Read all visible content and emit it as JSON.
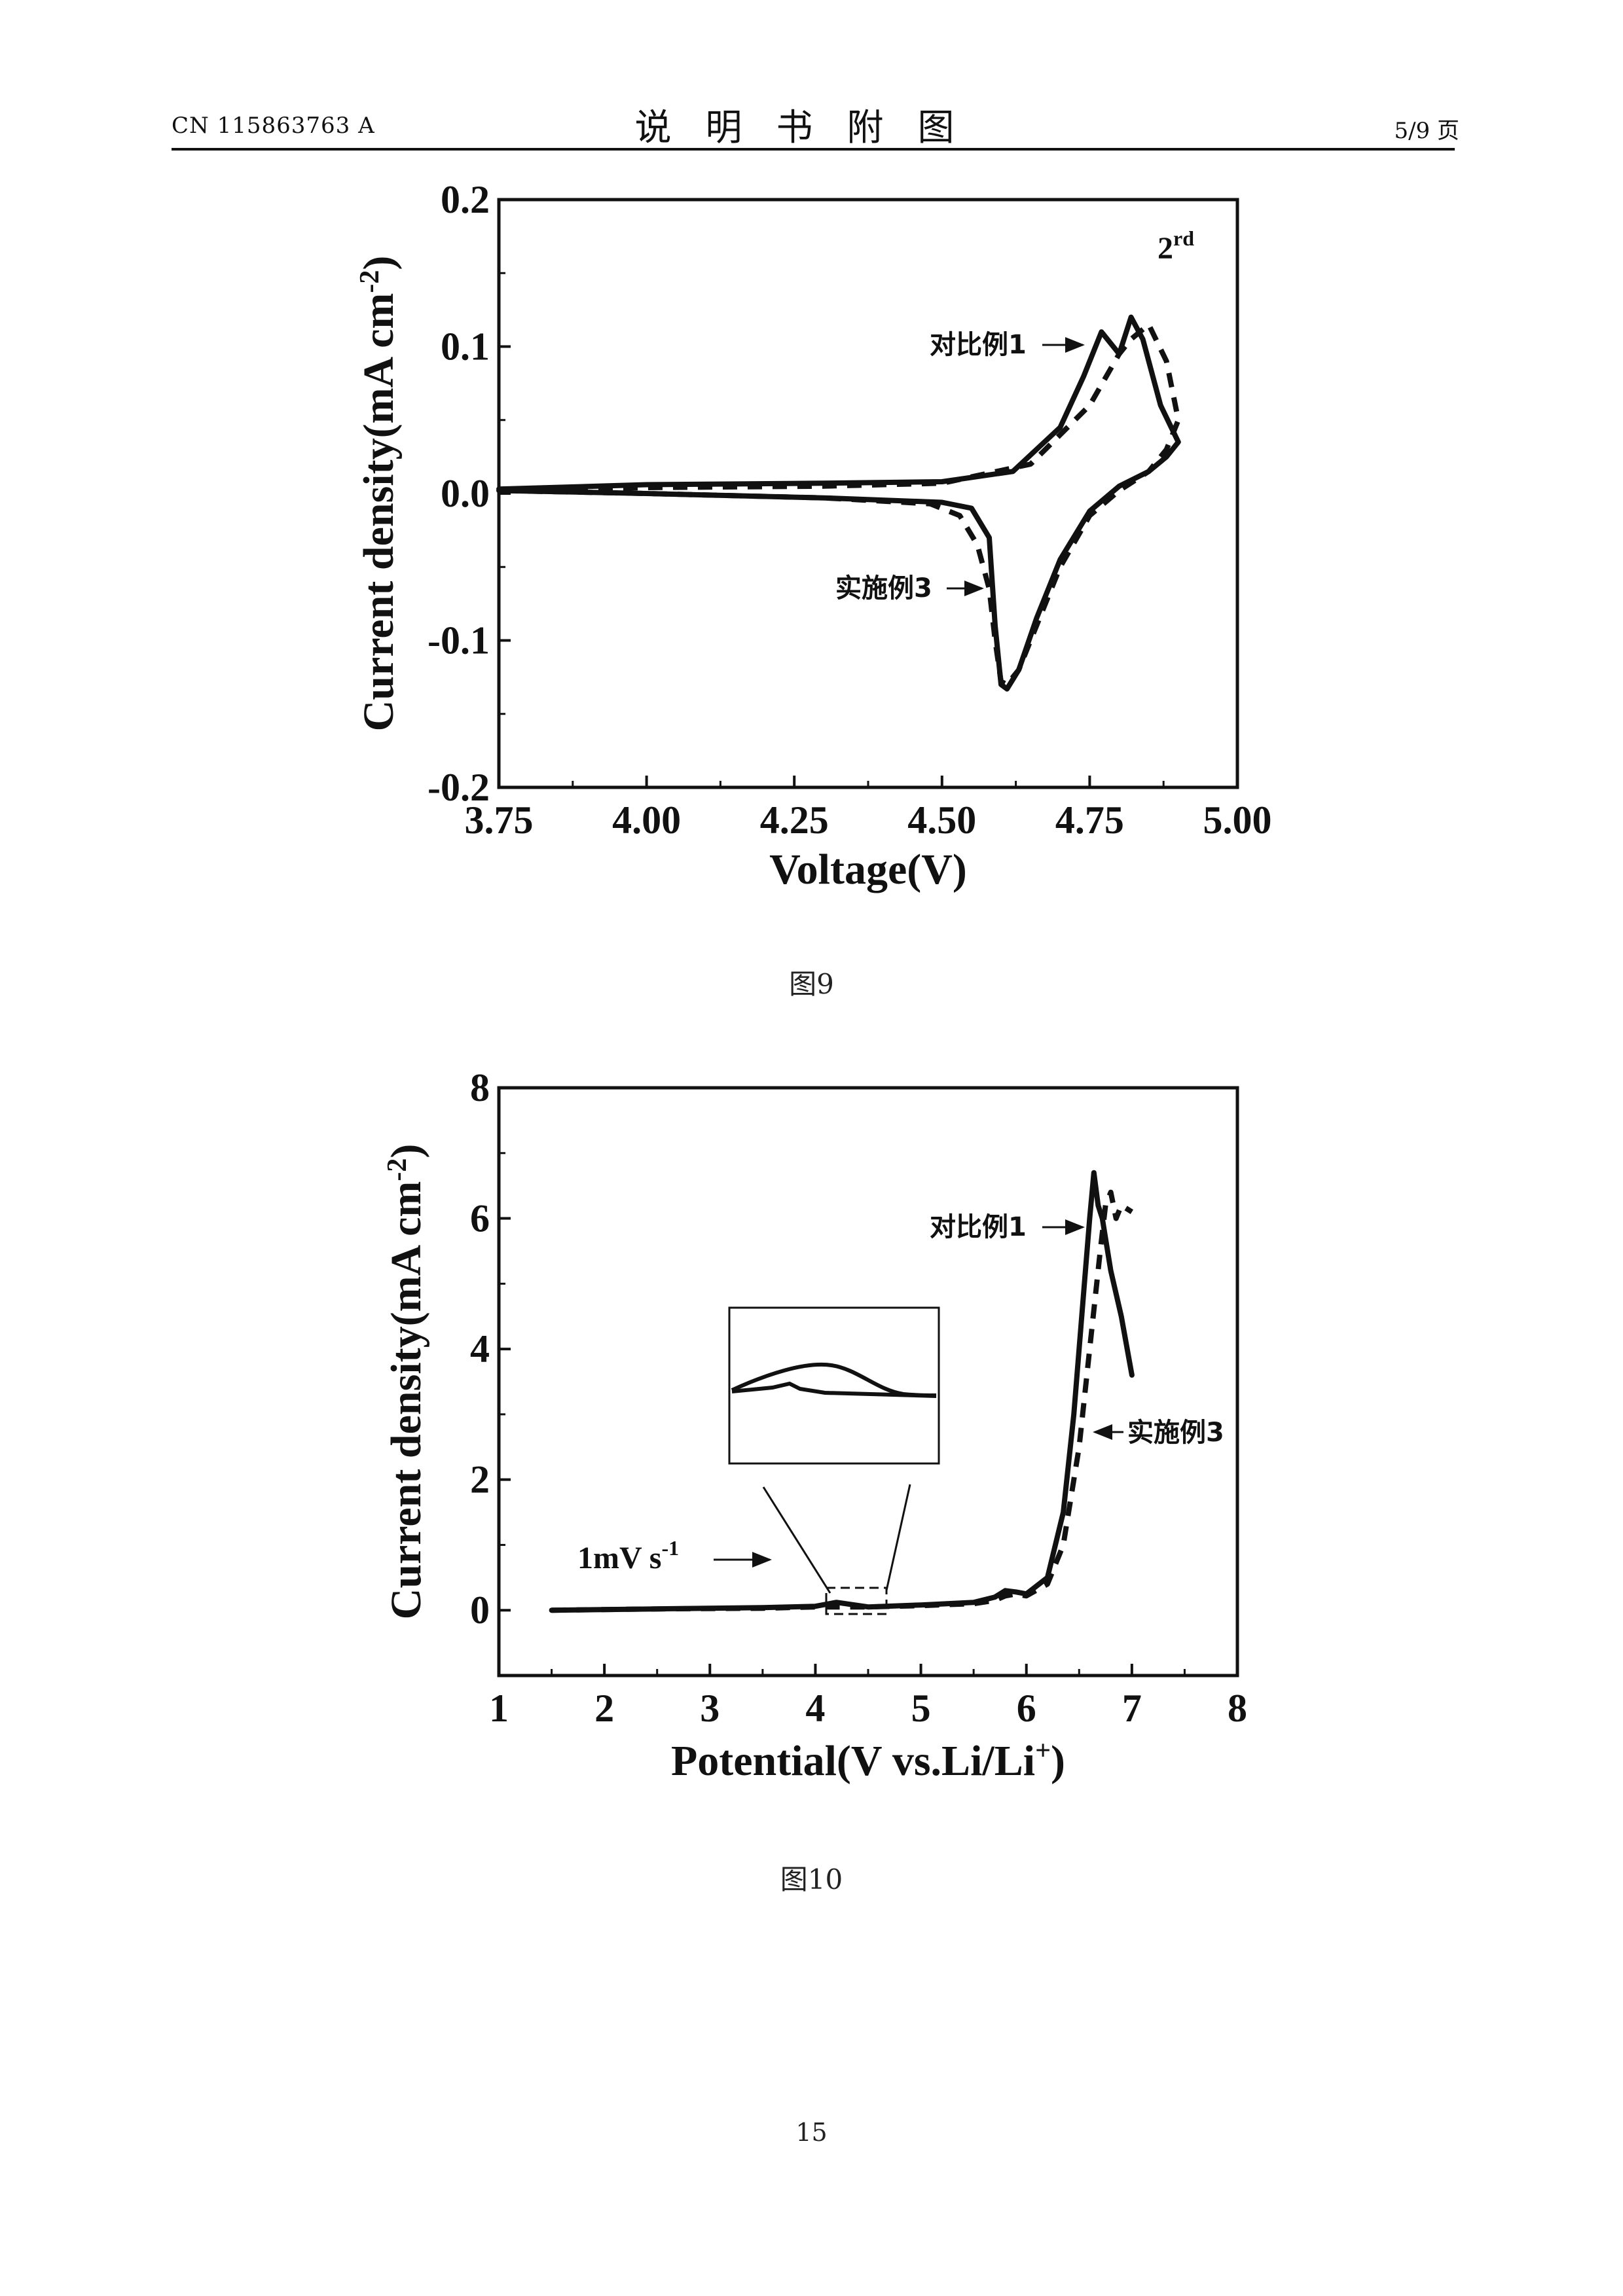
{
  "header": {
    "doc_number": "CN 115863763 A",
    "title": "说明书附图",
    "page_of": "5/9 页"
  },
  "footer": {
    "page_number": "15"
  },
  "chart_data": [
    {
      "type": "line",
      "figure_caption": "图9",
      "xlabel": "Voltage(V)",
      "ylabel": "Current density(mA cm",
      "ylabel_sup": "-2",
      "ylabel_close": ")",
      "xlim": [
        3.75,
        5.0
      ],
      "ylim": [
        -0.2,
        0.2
      ],
      "xticks": [
        "3.75",
        "4.00",
        "4.25",
        "4.50",
        "4.75",
        "5.00"
      ],
      "xtick_values": [
        3.75,
        4.0,
        4.25,
        4.5,
        4.75,
        5.0
      ],
      "yticks": [
        "0.2",
        "0.1",
        "0.0",
        "-0.1",
        "-0.2"
      ],
      "ytick_values": [
        0.2,
        0.1,
        0.0,
        -0.1,
        -0.2
      ],
      "annotation_cycle": "2",
      "annotation_cycle_sup": "rd",
      "series": [
        {
          "name": "对比例1",
          "style": "solid",
          "x": [
            3.75,
            4.0,
            4.3,
            4.5,
            4.62,
            4.7,
            4.74,
            4.77,
            4.8,
            4.82,
            4.84,
            4.87,
            4.9,
            4.88,
            4.85,
            4.8,
            4.75,
            4.7,
            4.66,
            4.63,
            4.61,
            4.6,
            4.59,
            4.58,
            4.55,
            4.5,
            4.3,
            4.0,
            3.75
          ],
          "y": [
            0.003,
            0.006,
            0.007,
            0.008,
            0.015,
            0.045,
            0.08,
            0.11,
            0.095,
            0.12,
            0.105,
            0.06,
            0.035,
            0.025,
            0.015,
            0.005,
            -0.012,
            -0.045,
            -0.085,
            -0.12,
            -0.133,
            -0.13,
            -0.09,
            -0.03,
            -0.01,
            -0.006,
            -0.003,
            0.0,
            0.002
          ]
        },
        {
          "name": "实施例3",
          "style": "dashed",
          "x": [
            3.75,
            4.0,
            4.3,
            4.5,
            4.65,
            4.75,
            4.8,
            4.82,
            4.85,
            4.88,
            4.9,
            4.88,
            4.85,
            4.8,
            4.75,
            4.7,
            4.66,
            4.63,
            4.61,
            4.6,
            4.59,
            4.58,
            4.56,
            4.53,
            4.48,
            4.3,
            4.0,
            3.75
          ],
          "y": [
            0.002,
            0.004,
            0.005,
            0.007,
            0.02,
            0.06,
            0.095,
            0.105,
            0.115,
            0.09,
            0.05,
            0.03,
            0.015,
            0.002,
            -0.015,
            -0.05,
            -0.09,
            -0.12,
            -0.13,
            -0.128,
            -0.1,
            -0.065,
            -0.035,
            -0.015,
            -0.007,
            -0.003,
            0.0,
            0.002
          ]
        }
      ]
    },
    {
      "type": "line",
      "figure_caption": "图10",
      "xlabel": "Potential(V vs.Li/Li",
      "xlabel_sup": "+",
      "xlabel_close": ")",
      "ylabel": "Current density(mA cm",
      "ylabel_sup": "-2",
      "ylabel_close": ")",
      "xlim": [
        1,
        8
      ],
      "ylim": [
        -1,
        8
      ],
      "xticks": [
        "1",
        "2",
        "3",
        "4",
        "5",
        "6",
        "7",
        "8"
      ],
      "xtick_values": [
        1,
        2,
        3,
        4,
        5,
        6,
        7,
        8
      ],
      "yticks": [
        "8",
        "6",
        "4",
        "2",
        "0"
      ],
      "ytick_values": [
        8,
        6,
        4,
        2,
        0
      ],
      "annotation_scan_rate": "1mV s",
      "annotation_scan_rate_sup": "-1",
      "series": [
        {
          "name": "对比例1",
          "style": "solid",
          "x": [
            1.5,
            2.5,
            3.5,
            4.0,
            4.2,
            4.5,
            5.0,
            5.5,
            5.7,
            5.8,
            5.9,
            6.0,
            6.2,
            6.35,
            6.45,
            6.55,
            6.6,
            6.64,
            6.68,
            6.72,
            6.8,
            6.9,
            7.0
          ],
          "y": [
            0.0,
            0.02,
            0.04,
            0.06,
            0.12,
            0.05,
            0.08,
            0.12,
            0.2,
            0.3,
            0.28,
            0.25,
            0.5,
            1.5,
            3.0,
            5.0,
            6.0,
            6.7,
            6.2,
            6.0,
            5.2,
            4.5,
            3.6
          ]
        },
        {
          "name": "实施例3",
          "style": "dashed",
          "x": [
            1.5,
            2.5,
            3.5,
            4.0,
            4.5,
            5.0,
            5.5,
            5.7,
            5.8,
            5.9,
            6.0,
            6.2,
            6.35,
            6.5,
            6.6,
            6.7,
            6.75,
            6.8,
            6.85,
            6.9,
            7.0
          ],
          "y": [
            0.0,
            0.02,
            0.03,
            0.05,
            0.05,
            0.07,
            0.1,
            0.15,
            0.22,
            0.25,
            0.22,
            0.4,
            1.0,
            2.5,
            4.0,
            5.5,
            6.2,
            6.4,
            6.0,
            6.2,
            6.1
          ]
        }
      ]
    }
  ]
}
